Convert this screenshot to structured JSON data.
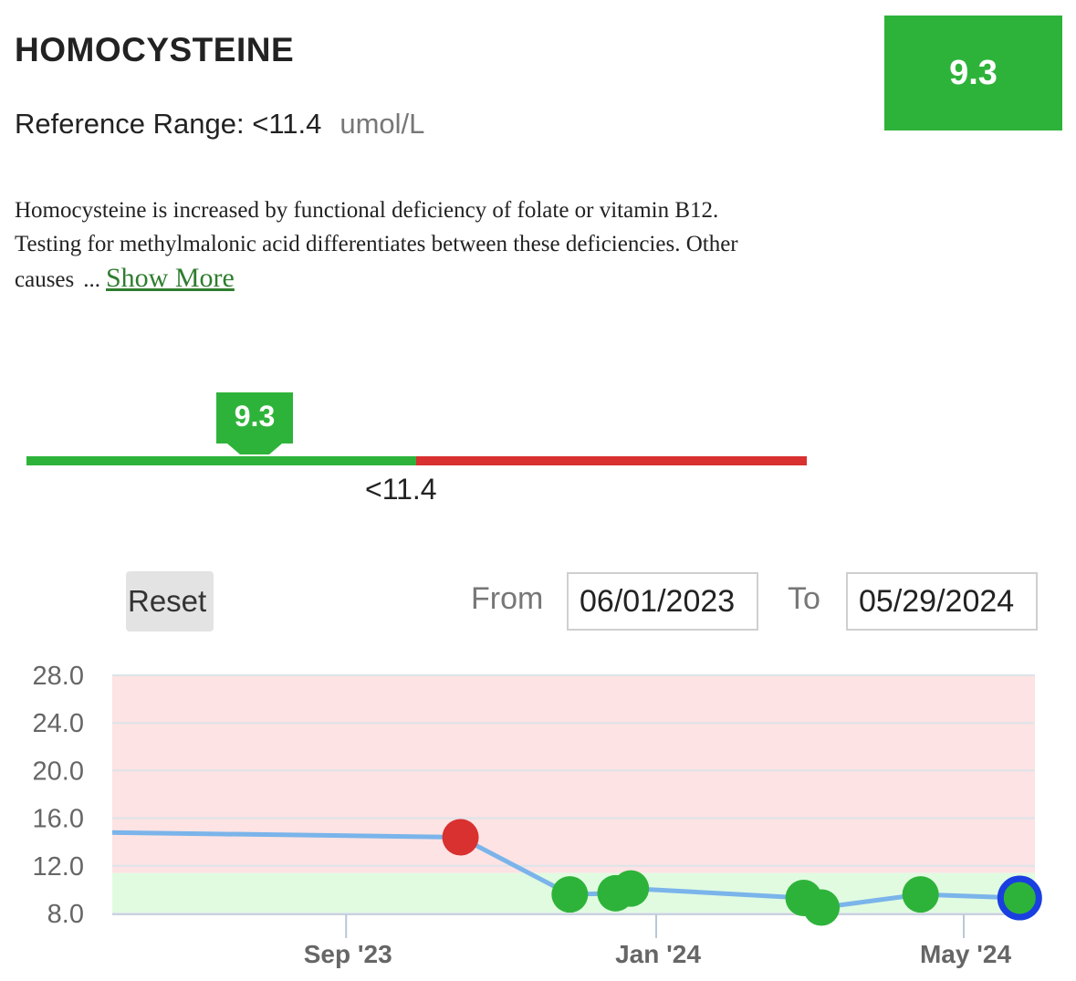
{
  "header": {
    "title": "HOMOCYSTEINE",
    "reference_label": "Reference Range: <11.4",
    "unit": "umol/L",
    "current_value": "9.3"
  },
  "description": {
    "text": "Homocysteine is increased by functional deficiency of folate or vitamin B12. Testing for methylmalonic acid differentiates between these deficiencies. Other causes",
    "ellipsis": "...",
    "show_more": "Show More"
  },
  "range_bar": {
    "marker_value": "9.3",
    "threshold_label": "<11.4",
    "colors": {
      "normal": "#2eb33a",
      "high": "#d93030"
    }
  },
  "controls": {
    "reset_label": "Reset",
    "from_label": "From",
    "from_value": "06/01/2023",
    "to_label": "To",
    "to_value": "05/29/2024"
  },
  "chart_data": {
    "type": "line",
    "ylim": [
      8,
      28
    ],
    "y_ticks": [
      "8.0",
      "12.0",
      "16.0",
      "20.0",
      "24.0",
      "28.0"
    ],
    "x_ticks": [
      {
        "label": "Sep '23",
        "date": "2023-09-01"
      },
      {
        "label": "Jan '24",
        "date": "2024-01-01"
      },
      {
        "label": "May '24",
        "date": "2024-05-01"
      }
    ],
    "x_range": [
      "2023-06-01",
      "2024-05-29"
    ],
    "normal_band": [
      8,
      11.4
    ],
    "grid": true,
    "colors": {
      "line": "#7ab4ea",
      "normal_point": "#2eb33a",
      "high_point": "#d93030",
      "latest_ring": "#1a3fe0",
      "high_band": "#fde3e3",
      "normal_band": "#e1fbe1"
    },
    "points": [
      {
        "date": "2023-06-01",
        "value": 14.8,
        "status": "edge"
      },
      {
        "date": "2023-10-16",
        "value": 14.4,
        "status": "high"
      },
      {
        "date": "2023-11-28",
        "value": 9.6,
        "status": "normal"
      },
      {
        "date": "2023-12-16",
        "value": 9.7,
        "status": "normal"
      },
      {
        "date": "2023-12-22",
        "value": 10.1,
        "status": "normal"
      },
      {
        "date": "2024-02-28",
        "value": 9.3,
        "status": "normal"
      },
      {
        "date": "2024-03-06",
        "value": 8.5,
        "status": "normal"
      },
      {
        "date": "2024-04-14",
        "value": 9.6,
        "status": "normal"
      },
      {
        "date": "2024-05-23",
        "value": 9.3,
        "status": "latest"
      }
    ]
  }
}
